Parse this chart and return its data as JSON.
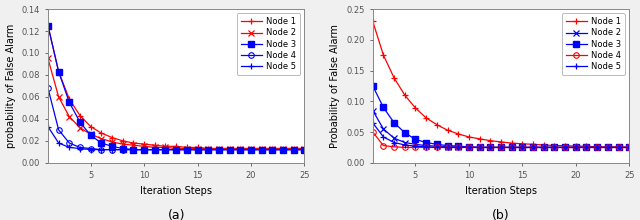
{
  "subplot_a": {
    "title": "(a)",
    "xlabel": "Iteration Steps",
    "ylabel": "probability of False Alarm",
    "xlim": [
      1,
      25
    ],
    "ylim": [
      0,
      0.14
    ],
    "yticks": [
      0,
      0.02,
      0.04,
      0.06,
      0.08,
      0.1,
      0.12,
      0.14
    ],
    "xticks": [
      5,
      10,
      15,
      20,
      25
    ],
    "nodes": [
      {
        "label": "Node 1",
        "color": "#ff0000",
        "marker": "P",
        "markersize": 4,
        "y": [
          0.125,
          0.083,
          0.058,
          0.043,
          0.033,
          0.027,
          0.023,
          0.02,
          0.018,
          0.017,
          0.016,
          0.015,
          0.015,
          0.014,
          0.014,
          0.013,
          0.013,
          0.013,
          0.013,
          0.013,
          0.013,
          0.013,
          0.013,
          0.013,
          0.013
        ]
      },
      {
        "label": "Node 2",
        "color": "#ff0000",
        "marker": "x",
        "markersize": 4,
        "y": [
          0.095,
          0.06,
          0.042,
          0.032,
          0.026,
          0.022,
          0.019,
          0.017,
          0.016,
          0.015,
          0.014,
          0.014,
          0.013,
          0.013,
          0.013,
          0.013,
          0.013,
          0.013,
          0.013,
          0.013,
          0.013,
          0.013,
          0.013,
          0.013,
          0.013
        ]
      },
      {
        "label": "Node 3",
        "color": "#0000ff",
        "marker": "s",
        "markersize": 4,
        "y": [
          0.125,
          0.083,
          0.055,
          0.037,
          0.025,
          0.018,
          0.015,
          0.013,
          0.012,
          0.012,
          0.012,
          0.012,
          0.012,
          0.012,
          0.012,
          0.012,
          0.012,
          0.012,
          0.012,
          0.012,
          0.012,
          0.012,
          0.012,
          0.012,
          0.012
        ]
      },
      {
        "label": "Node 4",
        "color": "#0000ff",
        "marker": "o",
        "markersize": 4,
        "y": [
          0.068,
          0.03,
          0.018,
          0.014,
          0.013,
          0.012,
          0.012,
          0.012,
          0.012,
          0.012,
          0.012,
          0.012,
          0.012,
          0.012,
          0.012,
          0.012,
          0.012,
          0.012,
          0.012,
          0.012,
          0.012,
          0.012,
          0.012,
          0.012,
          0.012
        ]
      },
      {
        "label": "Node 5",
        "color": "#0000ff",
        "marker": "P",
        "markersize": 4,
        "y": [
          0.033,
          0.018,
          0.014,
          0.013,
          0.012,
          0.012,
          0.012,
          0.012,
          0.012,
          0.012,
          0.012,
          0.012,
          0.012,
          0.012,
          0.012,
          0.012,
          0.012,
          0.012,
          0.012,
          0.012,
          0.012,
          0.012,
          0.012,
          0.012,
          0.012
        ]
      }
    ]
  },
  "subplot_b": {
    "title": "(b)",
    "xlabel": "Iteration Steps",
    "ylabel": "Probability of False Alarm",
    "xlim": [
      1,
      25
    ],
    "ylim": [
      0,
      0.25
    ],
    "yticks": [
      0,
      0.05,
      0.1,
      0.15,
      0.2,
      0.25
    ],
    "xticks": [
      5,
      10,
      15,
      20,
      25
    ],
    "nodes": [
      {
        "label": "Node 1",
        "color": "#ff0000",
        "marker": "P",
        "markersize": 4,
        "y": [
          0.23,
          0.175,
          0.138,
          0.11,
          0.089,
          0.073,
          0.062,
          0.053,
          0.047,
          0.042,
          0.039,
          0.036,
          0.034,
          0.032,
          0.031,
          0.03,
          0.029,
          0.028,
          0.028,
          0.027,
          0.027,
          0.026,
          0.026,
          0.026,
          0.025
        ]
      },
      {
        "label": "Node 2",
        "color": "#0000ff",
        "marker": "x",
        "markersize": 4,
        "y": [
          0.085,
          0.055,
          0.04,
          0.033,
          0.03,
          0.028,
          0.027,
          0.026,
          0.026,
          0.025,
          0.025,
          0.025,
          0.025,
          0.025,
          0.025,
          0.025,
          0.025,
          0.025,
          0.025,
          0.025,
          0.025,
          0.025,
          0.025,
          0.025,
          0.025
        ]
      },
      {
        "label": "Node 3",
        "color": "#0000ff",
        "marker": "s",
        "markersize": 4,
        "y": [
          0.125,
          0.09,
          0.065,
          0.049,
          0.038,
          0.033,
          0.03,
          0.028,
          0.027,
          0.026,
          0.025,
          0.025,
          0.025,
          0.025,
          0.025,
          0.025,
          0.025,
          0.025,
          0.025,
          0.025,
          0.025,
          0.025,
          0.025,
          0.025,
          0.025
        ]
      },
      {
        "label": "Node 4",
        "color": "#ff0000",
        "marker": "o",
        "markersize": 4,
        "y": [
          0.05,
          0.028,
          0.026,
          0.025,
          0.025,
          0.025,
          0.025,
          0.025,
          0.025,
          0.025,
          0.025,
          0.025,
          0.025,
          0.025,
          0.025,
          0.025,
          0.025,
          0.025,
          0.025,
          0.025,
          0.025,
          0.025,
          0.025,
          0.025,
          0.025
        ]
      },
      {
        "label": "Node 5",
        "color": "#0000ff",
        "marker": "P",
        "markersize": 4,
        "y": [
          0.065,
          0.042,
          0.033,
          0.029,
          0.027,
          0.026,
          0.025,
          0.025,
          0.025,
          0.025,
          0.025,
          0.025,
          0.025,
          0.025,
          0.025,
          0.025,
          0.025,
          0.025,
          0.025,
          0.025,
          0.025,
          0.025,
          0.025,
          0.025,
          0.025
        ]
      }
    ]
  },
  "figsize": [
    6.4,
    2.2
  ],
  "dpi": 100,
  "bg_color": "#f0f0f0",
  "axes_bg": "#ffffff",
  "spine_color": "#888888",
  "tick_color": "#555555",
  "label_fontsize": 7,
  "tick_fontsize": 6,
  "legend_fontsize": 6,
  "title_fontsize": 9,
  "linewidth": 0.9
}
